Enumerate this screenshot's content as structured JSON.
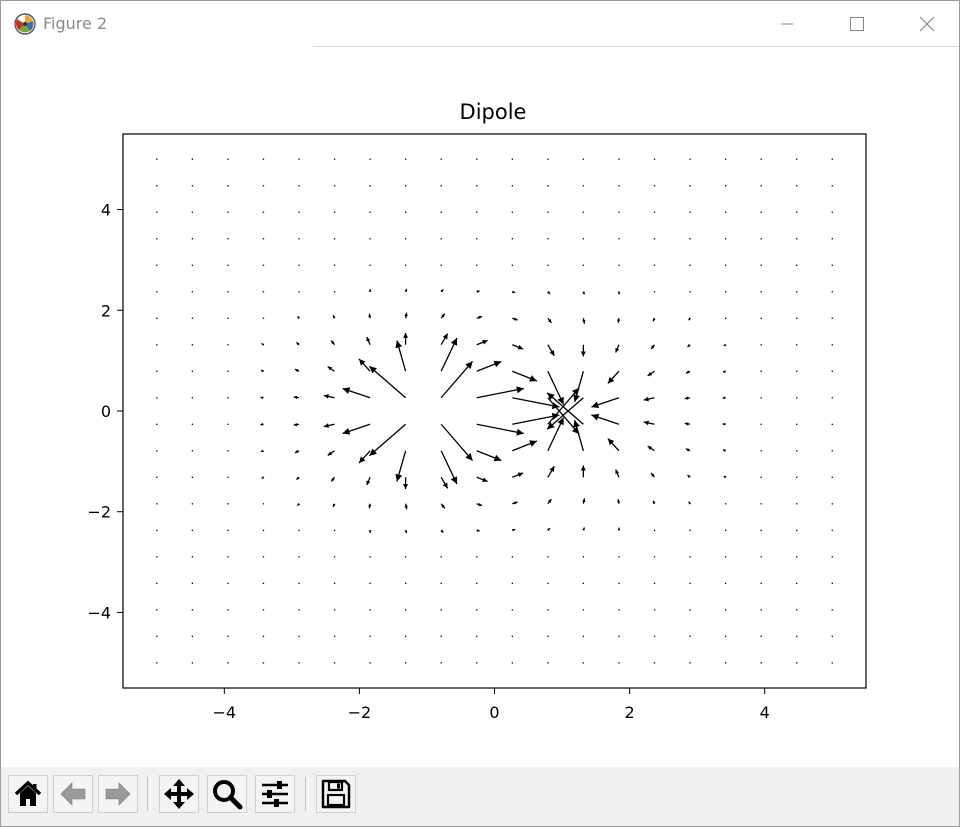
{
  "window": {
    "title": "Figure 2",
    "controls": [
      "minimize",
      "maximize",
      "close"
    ]
  },
  "toolbar": {
    "buttons": [
      {
        "name": "home-button",
        "icon": "home-icon"
      },
      {
        "name": "back-button",
        "icon": "arrow-left-icon"
      },
      {
        "name": "forward-button",
        "icon": "arrow-right-icon"
      },
      {
        "name": "pan-button",
        "icon": "move-icon"
      },
      {
        "name": "zoom-button",
        "icon": "magnifier-icon"
      },
      {
        "name": "configure-subplots-button",
        "icon": "sliders-icon"
      },
      {
        "name": "save-button",
        "icon": "floppy-disk-icon"
      }
    ]
  },
  "chart_data": {
    "type": "quiver",
    "title": "Dipole",
    "xlabel": "",
    "ylabel": "",
    "xlim": [
      -5.5,
      5.5
    ],
    "ylim": [
      -5.5,
      5.5
    ],
    "xticks": [
      -4,
      -2,
      0,
      2,
      4
    ],
    "yticks": [
      -4,
      -2,
      0,
      2,
      4
    ],
    "xtick_labels": [
      "−4",
      "−2",
      "0",
      "2",
      "4"
    ],
    "ytick_labels": [
      "−4",
      "−2",
      "0",
      "2",
      "4"
    ],
    "grid": {
      "x_start": -5,
      "x_end": 5,
      "y_start": -5,
      "y_end": 5,
      "step": 0.5263
    },
    "charges": [
      {
        "sign": "+",
        "x": -1,
        "y": 0
      },
      {
        "sign": "-",
        "x": 1,
        "y": 0
      }
    ],
    "grid_lines": false,
    "legend": "none",
    "arrow_color": "#000000"
  }
}
